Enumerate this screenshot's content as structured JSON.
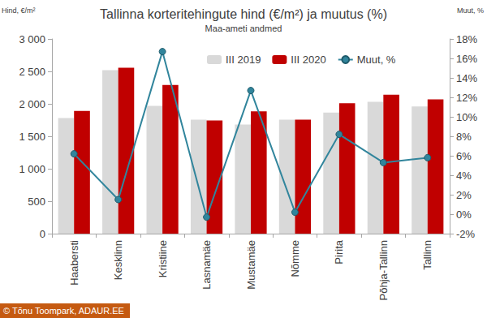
{
  "chart_data": {
    "type": "bar",
    "title": "Tallinna korteritehingute hind (€/m²) ja muutus (%)",
    "subtitle": "Maa-ameti andmed",
    "y_label": "Hind, €/m²",
    "y2_label": "Muut, %",
    "annotation": "© Tõnu Toompark, ADAUR.EE",
    "categories": [
      "Haabersti",
      "Kesklinn",
      "Kristiine",
      "Lasnamäe",
      "Mustamäe",
      "Nõmme",
      "Pirita",
      "Põhja-Tallinn",
      "Tallinn"
    ],
    "series": [
      {
        "name": "III 2019",
        "type": "bar",
        "color": "#d9d9d9",
        "values": [
          1780,
          2520,
          1970,
          1755,
          1680,
          1755,
          1865,
          2030,
          1960
        ]
      },
      {
        "name": "III 2020",
        "type": "bar",
        "color": "#c00000",
        "values": [
          1890,
          2555,
          2290,
          1745,
          1885,
          1755,
          2010,
          2140,
          2070
        ]
      },
      {
        "name": "Muut, %",
        "type": "line",
        "axis": "y2",
        "color": "#31859c",
        "marker": "circle",
        "values": [
          6.2,
          1.5,
          16.7,
          -0.3,
          12.7,
          0.2,
          8.2,
          5.3,
          5.8
        ]
      }
    ],
    "ylim": [
      0,
      3000
    ],
    "yticks": [
      {
        "value": 0,
        "label": "0"
      },
      {
        "value": 500,
        "label": "500"
      },
      {
        "value": 1000,
        "label": "1 000"
      },
      {
        "value": 1500,
        "label": "1 500"
      },
      {
        "value": 2000,
        "label": "2 000"
      },
      {
        "value": 2500,
        "label": "2 500"
      },
      {
        "value": 3000,
        "label": "3 000"
      }
    ],
    "y2lim": [
      -2,
      18
    ],
    "y2ticks": [
      {
        "value": -2,
        "label": "-2%"
      },
      {
        "value": 0,
        "label": "0%"
      },
      {
        "value": 2,
        "label": "2%"
      },
      {
        "value": 4,
        "label": "4%"
      },
      {
        "value": 6,
        "label": "6%"
      },
      {
        "value": 8,
        "label": "8%"
      },
      {
        "value": 10,
        "label": "10%"
      },
      {
        "value": 12,
        "label": "12%"
      },
      {
        "value": 14,
        "label": "14%"
      },
      {
        "value": 16,
        "label": "16%"
      },
      {
        "value": 18,
        "label": "18%"
      }
    ],
    "grid": false,
    "legend": "top"
  }
}
